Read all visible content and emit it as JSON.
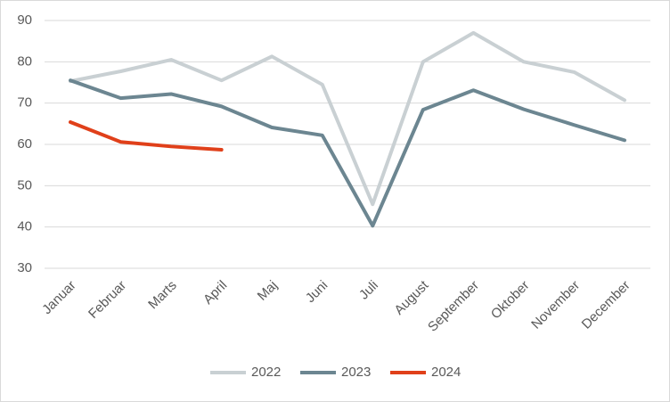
{
  "chart_data": {
    "type": "line",
    "categories": [
      "Januar",
      "Februar",
      "Marts",
      "April",
      "Maj",
      "Juni",
      "Juli",
      "August",
      "September",
      "Oktober",
      "November",
      "December"
    ],
    "series": [
      {
        "name": "2022",
        "color": "#c9d0d3",
        "values": [
          75.3,
          77.7,
          80.5,
          75.5,
          81.3,
          74.5,
          45.5,
          80,
          87,
          80,
          77.5,
          70.7
        ]
      },
      {
        "name": "2023",
        "color": "#6c8691",
        "values": [
          75.5,
          71.2,
          72.2,
          69.2,
          64.1,
          62.2,
          40.3,
          68.4,
          73.1,
          68.5,
          64.7,
          61.0
        ]
      },
      {
        "name": "2024",
        "color": "#e0401a",
        "values": [
          65.4,
          60.6,
          59.5,
          58.7,
          null,
          null,
          null,
          null,
          null,
          null,
          null,
          null
        ]
      }
    ],
    "ylim": [
      30,
      90
    ],
    "yticks": [
      30,
      40,
      50,
      60,
      70,
      80,
      90
    ],
    "grid": true,
    "legend": "bottom"
  }
}
